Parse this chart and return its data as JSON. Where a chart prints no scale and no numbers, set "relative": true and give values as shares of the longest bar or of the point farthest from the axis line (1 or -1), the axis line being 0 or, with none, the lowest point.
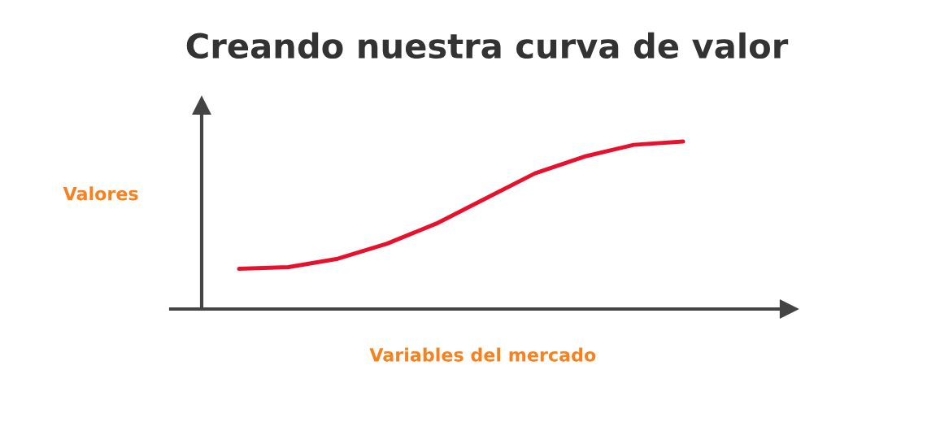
{
  "chart_data": {
    "type": "line",
    "title": "Creando nuestra curva de valor",
    "xlabel": "Variables del mercado",
    "ylabel": "Valores",
    "relative": true,
    "categories": [
      null,
      null,
      null,
      null,
      null,
      null,
      null,
      null,
      null,
      null
    ],
    "series": [
      {
        "color": "#e8112d",
        "values": [
          0.24,
          0.25,
          0.3,
          0.39,
          0.51,
          0.66,
          0.81,
          0.91,
          0.98,
          1.0
        ]
      }
    ],
    "marker": "none",
    "line_style": "solid"
  }
}
